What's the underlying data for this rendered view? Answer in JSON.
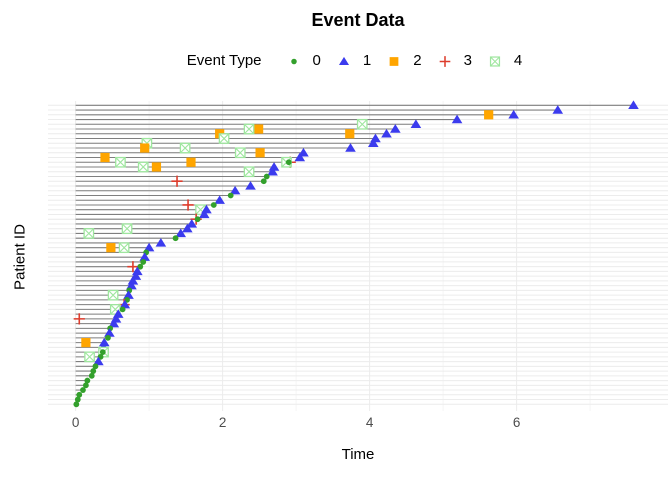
{
  "title": "Event Data",
  "legend": {
    "title": "Event Type",
    "items": [
      {
        "label": "0",
        "marker": "circle",
        "color": "#33a02c"
      },
      {
        "label": "1",
        "marker": "triangle",
        "color": "#3b3bee"
      },
      {
        "label": "2",
        "marker": "square",
        "color": "#ffa500"
      },
      {
        "label": "3",
        "marker": "plus",
        "color": "#dd3d2d"
      },
      {
        "label": "4",
        "marker": "square-cross",
        "color": "#9fe69f"
      }
    ]
  },
  "axes": {
    "x_label": "Time",
    "y_label": "Patient ID",
    "x_ticks": [
      0,
      2,
      4,
      6
    ],
    "x_minor_ticks": [
      1,
      3,
      5,
      7
    ],
    "x_range": [
      -0.37,
      8.05
    ],
    "y_tick_labels_shown": false,
    "tick_label_color": "#4d4d4d"
  },
  "style_colors": {
    "segment": "#7f7f7f",
    "grid_major": "#ececec",
    "grid_minor": "#f5f5f5",
    "background": "#ffffff"
  },
  "chart_data": {
    "type": "scatter",
    "subtype": "patient-event-timeline",
    "title": "Event Data",
    "xlabel": "Time",
    "ylabel": "Patient ID",
    "xlim": [
      -0.37,
      8.05
    ],
    "grid": true,
    "legend_position": "top-center",
    "n_patients": 64,
    "event_type_markers": {
      "0": "green circle",
      "1": "blue triangle",
      "2": "orange square",
      "3": "red plus",
      "4": "light-green crossed square"
    },
    "patients_note": "ordered top row to bottom row; each patient has a gray follow-up segment from time 0 to 'end'; 'end_type' is the event marker at the segment end; 'events' are [type, time] markers along the segment",
    "patients": [
      {
        "end": 7.59,
        "end_type": 1,
        "events": []
      },
      {
        "end": 6.56,
        "end_type": 1,
        "events": []
      },
      {
        "end": 5.96,
        "end_type": 1,
        "events": [
          [
            2,
            5.62
          ]
        ]
      },
      {
        "end": 5.19,
        "end_type": 1,
        "events": []
      },
      {
        "end": 4.63,
        "end_type": 1,
        "events": [
          [
            4,
            3.9
          ]
        ]
      },
      {
        "end": 4.35,
        "end_type": 1,
        "events": [
          [
            2,
            2.49
          ],
          [
            4,
            2.36
          ]
        ]
      },
      {
        "end": 4.23,
        "end_type": 1,
        "events": [
          [
            2,
            3.73
          ],
          [
            2,
            1.96
          ]
        ]
      },
      {
        "end": 4.08,
        "end_type": 1,
        "events": [
          [
            4,
            2.02
          ]
        ]
      },
      {
        "end": 4.05,
        "end_type": 1,
        "events": [
          [
            4,
            0.97
          ]
        ]
      },
      {
        "end": 3.74,
        "end_type": 1,
        "events": [
          [
            4,
            1.49
          ],
          [
            2,
            0.94
          ]
        ]
      },
      {
        "end": 3.1,
        "end_type": 1,
        "events": [
          [
            2,
            2.51
          ],
          [
            4,
            2.24
          ]
        ]
      },
      {
        "end": 3.05,
        "end_type": 1,
        "events": [
          [
            2,
            0.4
          ]
        ]
      },
      {
        "end": 2.9,
        "end_type": 0,
        "events": [
          [
            3,
            2.92
          ],
          [
            4,
            2.87
          ],
          [
            2,
            1.57
          ],
          [
            4,
            0.61
          ]
        ]
      },
      {
        "end": 2.7,
        "end_type": 1,
        "events": [
          [
            2,
            1.1
          ],
          [
            4,
            0.92
          ]
        ]
      },
      {
        "end": 2.68,
        "end_type": 1,
        "events": [
          [
            4,
            2.36
          ]
        ]
      },
      {
        "end": 2.6,
        "end_type": 0,
        "events": []
      },
      {
        "end": 2.56,
        "end_type": 0,
        "events": [
          [
            3,
            1.38
          ]
        ]
      },
      {
        "end": 2.38,
        "end_type": 1,
        "events": []
      },
      {
        "end": 2.17,
        "end_type": 1,
        "events": []
      },
      {
        "end": 2.11,
        "end_type": 0,
        "events": []
      },
      {
        "end": 1.96,
        "end_type": 1,
        "events": []
      },
      {
        "end": 1.88,
        "end_type": 0,
        "events": [
          [
            3,
            1.53
          ]
        ]
      },
      {
        "end": 1.78,
        "end_type": 1,
        "events": [
          [
            4,
            1.7
          ]
        ]
      },
      {
        "end": 1.75,
        "end_type": 1,
        "events": []
      },
      {
        "end": 1.66,
        "end_type": 0,
        "events": [
          [
            3,
            1.64
          ]
        ]
      },
      {
        "end": 1.58,
        "end_type": 1,
        "events": []
      },
      {
        "end": 1.52,
        "end_type": 1,
        "events": [
          [
            4,
            0.7
          ]
        ]
      },
      {
        "end": 1.43,
        "end_type": 1,
        "events": [
          [
            4,
            0.18
          ]
        ]
      },
      {
        "end": 1.36,
        "end_type": 0,
        "events": []
      },
      {
        "end": 1.16,
        "end_type": 1,
        "events": []
      },
      {
        "end": 1.0,
        "end_type": 1,
        "events": [
          [
            4,
            0.66
          ],
          [
            2,
            0.48
          ]
        ]
      },
      {
        "end": 0.96,
        "end_type": 0,
        "events": []
      },
      {
        "end": 0.94,
        "end_type": 1,
        "events": []
      },
      {
        "end": 0.92,
        "end_type": 0,
        "events": []
      },
      {
        "end": 0.88,
        "end_type": 0,
        "events": [
          [
            3,
            0.78
          ]
        ]
      },
      {
        "end": 0.84,
        "end_type": 1,
        "events": []
      },
      {
        "end": 0.82,
        "end_type": 1,
        "events": []
      },
      {
        "end": 0.78,
        "end_type": 1,
        "events": []
      },
      {
        "end": 0.76,
        "end_type": 1,
        "events": []
      },
      {
        "end": 0.73,
        "end_type": 0,
        "events": []
      },
      {
        "end": 0.72,
        "end_type": 1,
        "events": [
          [
            4,
            0.51
          ]
        ]
      },
      {
        "end": 0.7,
        "end_type": 0,
        "events": []
      },
      {
        "end": 0.67,
        "end_type": 1,
        "events": [
          [
            3,
            0.66
          ]
        ]
      },
      {
        "end": 0.64,
        "end_type": 0,
        "events": [
          [
            4,
            0.54
          ]
        ]
      },
      {
        "end": 0.58,
        "end_type": 1,
        "events": []
      },
      {
        "end": 0.55,
        "end_type": 1,
        "events": [
          [
            3,
            0.05
          ]
        ]
      },
      {
        "end": 0.52,
        "end_type": 1,
        "events": []
      },
      {
        "end": 0.47,
        "end_type": 0,
        "events": []
      },
      {
        "end": 0.46,
        "end_type": 1,
        "events": []
      },
      {
        "end": 0.44,
        "end_type": 0,
        "events": []
      },
      {
        "end": 0.39,
        "end_type": 1,
        "events": [
          [
            2,
            0.14
          ]
        ]
      },
      {
        "end": 0.38,
        "end_type": 1,
        "events": []
      },
      {
        "end": 0.37,
        "end_type": 0,
        "events": [
          [
            4,
            0.38
          ]
        ]
      },
      {
        "end": 0.34,
        "end_type": 0,
        "events": [
          [
            4,
            0.19
          ]
        ]
      },
      {
        "end": 0.31,
        "end_type": 1,
        "events": []
      },
      {
        "end": 0.27,
        "end_type": 0,
        "events": []
      },
      {
        "end": 0.24,
        "end_type": 0,
        "events": []
      },
      {
        "end": 0.22,
        "end_type": 0,
        "events": []
      },
      {
        "end": 0.16,
        "end_type": 0,
        "events": []
      },
      {
        "end": 0.14,
        "end_type": 0,
        "events": []
      },
      {
        "end": 0.1,
        "end_type": 0,
        "events": []
      },
      {
        "end": 0.05,
        "end_type": 0,
        "events": []
      },
      {
        "end": 0.03,
        "end_type": 0,
        "events": []
      },
      {
        "end": 0.01,
        "end_type": 0,
        "events": []
      }
    ]
  }
}
